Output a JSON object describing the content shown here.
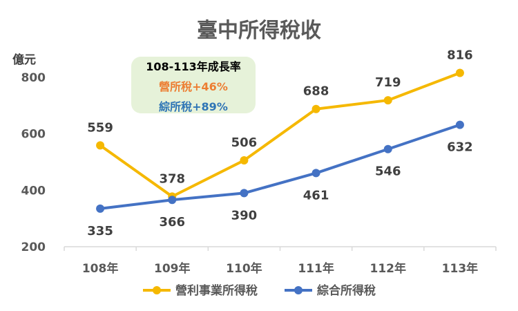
{
  "chart_data": {
    "type": "line",
    "title": "臺中所得稅收",
    "ylabel": "億元",
    "categories": [
      "108年",
      "109年",
      "110年",
      "111年",
      "112年",
      "113年"
    ],
    "ylim": [
      200,
      850
    ],
    "yticks": [
      "200",
      "400",
      "600",
      "800"
    ],
    "grid": false,
    "legend_position": "bottom",
    "series": [
      {
        "name": "營利事業所得稅",
        "color": "#F5B800",
        "values": [
          559,
          378,
          506,
          688,
          719,
          816
        ],
        "label_position": "above"
      },
      {
        "name": "綜合所得稅",
        "color": "#4472C4",
        "values": [
          335,
          366,
          390,
          461,
          546,
          632
        ],
        "label_position": "below"
      }
    ],
    "annotation": {
      "title": "108-113年成長率",
      "lines": [
        {
          "text": "營所稅+46%",
          "color": "#ED7D31"
        },
        {
          "text": "綜所稅+89%",
          "color": "#2E75B6"
        }
      ],
      "background": "#E6F2D9"
    }
  }
}
